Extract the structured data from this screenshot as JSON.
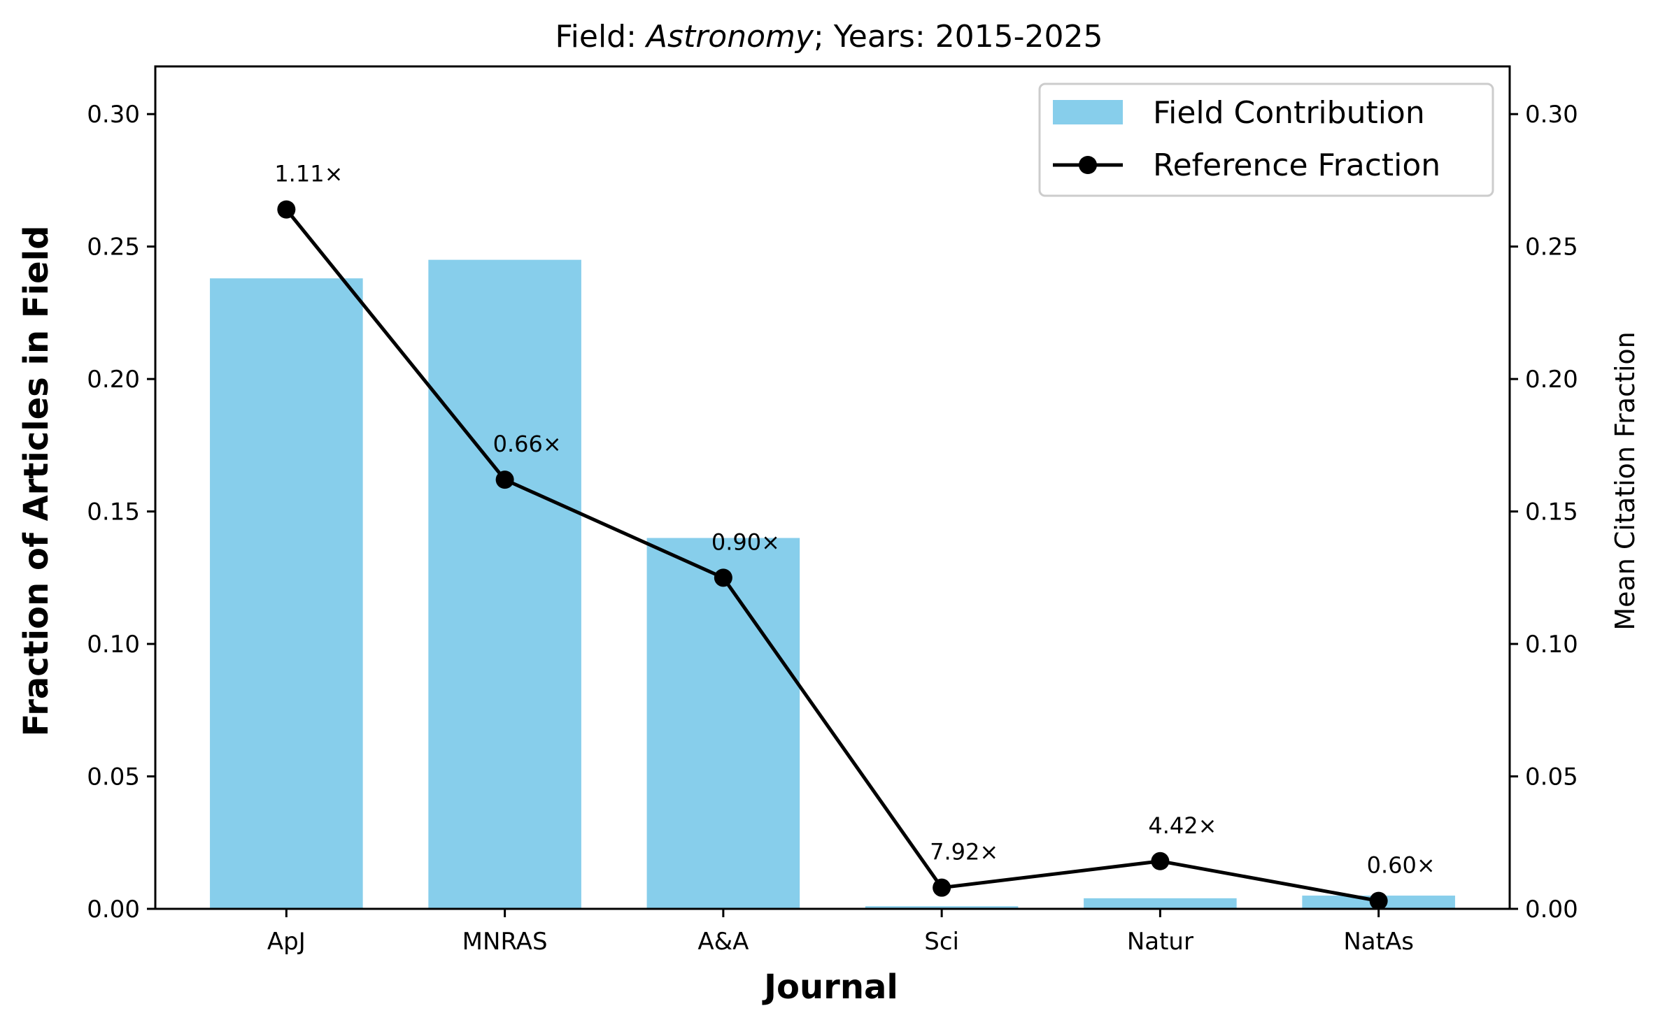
{
  "chart_data": {
    "type": "bar",
    "title": {
      "prefix": "Field: ",
      "field": "Astronomy",
      "suffix": "; Years: 2015-2025"
    },
    "xlabel": "Journal",
    "ylabel": "Fraction of Articles in Field",
    "y2label": "Mean Citation Fraction",
    "ylim": [
      0,
      0.318
    ],
    "y2lim": [
      0,
      0.318
    ],
    "yticks": [
      "0.00",
      "0.05",
      "0.10",
      "0.15",
      "0.20",
      "0.25",
      "0.30"
    ],
    "y2ticks": [
      "0.00",
      "0.05",
      "0.10",
      "0.15",
      "0.20",
      "0.25",
      "0.30"
    ],
    "categories": [
      "ApJ",
      "MNRAS",
      "A&A",
      "Sci",
      "Natur",
      "NatAs"
    ],
    "series": [
      {
        "name": "Field Contribution",
        "type": "bar",
        "color": "#87ceeb",
        "values": [
          0.238,
          0.245,
          0.14,
          0.001,
          0.004,
          0.005
        ]
      },
      {
        "name": "Reference Fraction",
        "type": "line",
        "axis": "right",
        "color": "#000000",
        "values": [
          0.264,
          0.162,
          0.125,
          0.008,
          0.018,
          0.003
        ]
      }
    ],
    "annotations": [
      "1.11×",
      "0.66×",
      "0.90×",
      "7.92×",
      "4.42×",
      "0.60×"
    ],
    "legend": "top-right",
    "grid": false
  }
}
